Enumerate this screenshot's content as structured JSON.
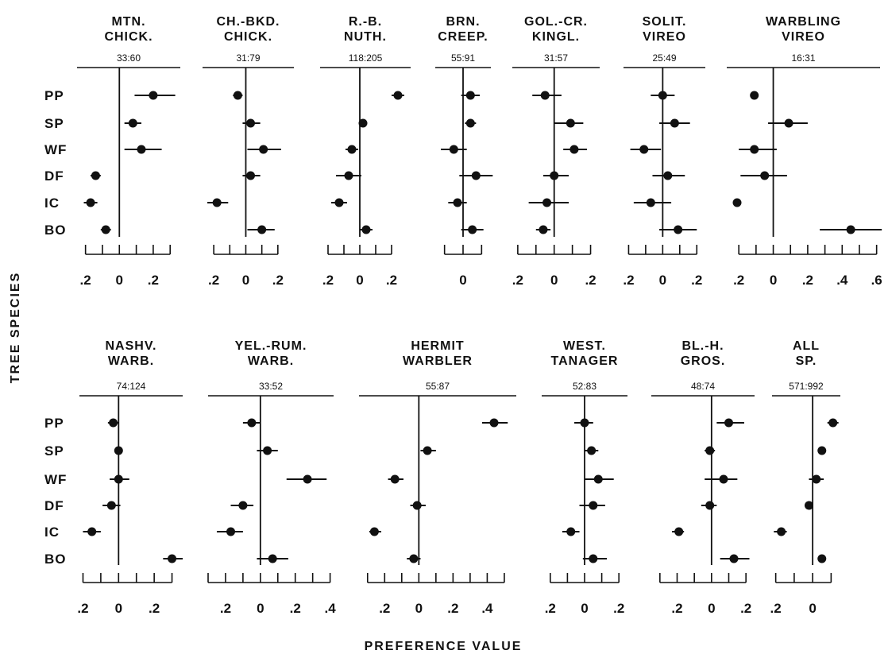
{
  "figure": {
    "y_axis_label": "TREE SPECIES",
    "x_axis_label": "PREFERENCE VALUE",
    "row_labels": [
      "PP",
      "SP",
      "WF",
      "DF",
      "IC",
      "BO"
    ]
  },
  "chart_data": [
    {
      "type": "scatter",
      "title": [
        "MTN.",
        "CHICK."
      ],
      "sample": "33:60",
      "categories": [
        "PP",
        "SP",
        "WF",
        "DF",
        "IC",
        "BO"
      ],
      "values": [
        0.2,
        0.08,
        0.13,
        -0.14,
        -0.17,
        -0.08
      ],
      "errors": [
        [
          0.09,
          0.33
        ],
        [
          0.03,
          0.13
        ],
        [
          0.03,
          0.25
        ],
        [
          -0.17,
          -0.11
        ],
        [
          -0.21,
          -0.13
        ],
        [
          -0.11,
          -0.05
        ]
      ],
      "xlim": [
        -0.25,
        0.36
      ],
      "ticks": [
        -0.2,
        -0.1,
        0,
        0.1,
        0.2,
        0.3
      ],
      "tick_labels": [
        ".2",
        "",
        "0",
        "",
        ".2",
        ""
      ]
    },
    {
      "type": "scatter",
      "title": [
        "CH.-BKD.",
        "CHICK."
      ],
      "sample": "31:79",
      "categories": [
        "PP",
        "SP",
        "WF",
        "DF",
        "IC",
        "BO"
      ],
      "values": [
        -0.05,
        0.03,
        0.11,
        0.03,
        -0.18,
        0.1
      ],
      "errors": [
        [
          -0.08,
          -0.02
        ],
        [
          -0.02,
          0.09
        ],
        [
          0.01,
          0.22
        ],
        [
          -0.02,
          0.09
        ],
        [
          -0.24,
          -0.11
        ],
        [
          0.01,
          0.18
        ]
      ],
      "xlim": [
        -0.27,
        0.3
      ],
      "ticks": [
        -0.2,
        -0.1,
        0,
        0.1,
        0.2
      ],
      "tick_labels": [
        ".2",
        "",
        "0",
        "",
        ".2"
      ]
    },
    {
      "type": "scatter",
      "title": [
        "R.-B.",
        "NUTH."
      ],
      "sample": "118:205",
      "categories": [
        "PP",
        "SP",
        "WF",
        "DF",
        "IC",
        "BO"
      ],
      "values": [
        0.24,
        0.02,
        -0.05,
        -0.07,
        -0.13,
        0.04
      ],
      "errors": [
        [
          0.2,
          0.28
        ],
        [
          0.0,
          0.04
        ],
        [
          -0.09,
          -0.01
        ],
        [
          -0.15,
          0.01
        ],
        [
          -0.18,
          -0.08
        ],
        [
          0.0,
          0.08
        ]
      ],
      "xlim": [
        -0.25,
        0.32
      ],
      "ticks": [
        -0.2,
        -0.1,
        0,
        0.1,
        0.2
      ],
      "tick_labels": [
        ".2",
        "",
        "0",
        "",
        ".2"
      ]
    },
    {
      "type": "scatter",
      "title": [
        "BRN.",
        "CREEP."
      ],
      "sample": "55:91",
      "categories": [
        "PP",
        "SP",
        "WF",
        "DF",
        "IC",
        "BO"
      ],
      "values": [
        0.04,
        0.04,
        -0.05,
        0.07,
        -0.03,
        0.05
      ],
      "errors": [
        [
          -0.01,
          0.09
        ],
        [
          0.01,
          0.07
        ],
        [
          -0.12,
          0.02
        ],
        [
          -0.02,
          0.16
        ],
        [
          -0.08,
          0.02
        ],
        [
          -0.01,
          0.11
        ]
      ],
      "xlim": [
        -0.15,
        0.15
      ],
      "ticks": [
        -0.1,
        0,
        0.1
      ],
      "tick_labels": [
        "",
        "0",
        ""
      ]
    },
    {
      "type": "scatter",
      "title": [
        "GOL.-CR.",
        "KINGL."
      ],
      "sample": "31:57",
      "categories": [
        "PP",
        "SP",
        "WF",
        "DF",
        "IC",
        "BO"
      ],
      "values": [
        -0.05,
        0.09,
        0.11,
        0.0,
        -0.04,
        -0.06
      ],
      "errors": [
        [
          -0.12,
          0.04
        ],
        [
          0.0,
          0.16
        ],
        [
          0.05,
          0.18
        ],
        [
          -0.06,
          0.08
        ],
        [
          -0.14,
          0.08
        ],
        [
          -0.1,
          -0.02
        ]
      ],
      "xlim": [
        -0.23,
        0.25
      ],
      "ticks": [
        -0.2,
        -0.1,
        0,
        0.1,
        0.2
      ],
      "tick_labels": [
        ".2",
        "",
        "0",
        "",
        ".2"
      ]
    },
    {
      "type": "scatter",
      "title": [
        "SOLIT.",
        "VIREO"
      ],
      "sample": "25:49",
      "categories": [
        "PP",
        "SP",
        "WF",
        "DF",
        "IC",
        "BO"
      ],
      "values": [
        0.0,
        0.07,
        -0.11,
        0.03,
        -0.07,
        0.09
      ],
      "errors": [
        [
          -0.07,
          0.07
        ],
        [
          -0.02,
          0.16
        ],
        [
          -0.19,
          -0.01
        ],
        [
          -0.06,
          0.13
        ],
        [
          -0.17,
          0.05
        ],
        [
          -0.02,
          0.2
        ]
      ],
      "xlim": [
        -0.23,
        0.25
      ],
      "ticks": [
        -0.2,
        -0.1,
        0,
        0.1,
        0.2
      ],
      "tick_labels": [
        ".2",
        "",
        "0",
        "",
        ".2"
      ]
    },
    {
      "type": "scatter",
      "title": [
        "WARBLING",
        "VIREO"
      ],
      "sample": "16:31",
      "categories": [
        "PP",
        "SP",
        "WF",
        "DF",
        "IC",
        "BO"
      ],
      "values": [
        -0.11,
        0.09,
        -0.11,
        -0.05,
        -0.21,
        0.45
      ],
      "errors": [
        [
          -0.12,
          -0.1
        ],
        [
          -0.03,
          0.2
        ],
        [
          -0.2,
          0.02
        ],
        [
          -0.19,
          0.08
        ],
        [
          -0.22,
          -0.2
        ],
        [
          0.27,
          0.63
        ]
      ],
      "xlim": [
        -0.27,
        0.62
      ],
      "ticks": [
        -0.2,
        -0.1,
        0,
        0.1,
        0.2,
        0.3,
        0.4,
        0.5,
        0.6
      ],
      "tick_labels": [
        ".2",
        "",
        "0",
        "",
        ".2",
        "",
        ".4",
        "",
        ".6"
      ]
    },
    {
      "type": "scatter",
      "title": [
        "NASHV.",
        "WARB."
      ],
      "sample": "74:124",
      "categories": [
        "PP",
        "SP",
        "WF",
        "DF",
        "IC",
        "BO"
      ],
      "values": [
        -0.03,
        0.0,
        0.0,
        -0.04,
        -0.15,
        0.3
      ],
      "errors": [
        [
          -0.06,
          0.0
        ],
        [
          -0.01,
          0.01
        ],
        [
          -0.05,
          0.06
        ],
        [
          -0.09,
          0.01
        ],
        [
          -0.2,
          -0.1
        ],
        [
          0.25,
          0.36
        ]
      ],
      "xlim": [
        -0.22,
        0.36
      ],
      "ticks": [
        -0.2,
        -0.1,
        0,
        0.1,
        0.2,
        0.3
      ],
      "tick_labels": [
        ".2",
        "",
        "0",
        "",
        ".2",
        ""
      ]
    },
    {
      "type": "scatter",
      "title": [
        "YEL.-RUM.",
        "WARB."
      ],
      "sample": "33:52",
      "categories": [
        "PP",
        "SP",
        "WF",
        "DF",
        "IC",
        "BO"
      ],
      "values": [
        -0.05,
        0.04,
        0.27,
        -0.1,
        -0.17,
        0.07
      ],
      "errors": [
        [
          -0.1,
          0.0
        ],
        [
          -0.02,
          0.1
        ],
        [
          0.15,
          0.38
        ],
        [
          -0.17,
          -0.04
        ],
        [
          -0.25,
          -0.1
        ],
        [
          -0.02,
          0.16
        ]
      ],
      "xlim": [
        -0.3,
        0.42
      ],
      "ticks": [
        -0.3,
        -0.2,
        -0.1,
        0,
        0.1,
        0.2,
        0.3,
        0.4
      ],
      "tick_labels": [
        "",
        ".2",
        "",
        "0",
        "",
        ".2",
        "",
        ".4"
      ]
    },
    {
      "type": "scatter",
      "title": [
        "HERMIT",
        "WARBLER"
      ],
      "sample": "55:87",
      "categories": [
        "PP",
        "SP",
        "WF",
        "DF",
        "IC",
        "BO"
      ],
      "values": [
        0.44,
        0.05,
        -0.14,
        -0.01,
        -0.26,
        -0.03
      ],
      "errors": [
        [
          0.37,
          0.52
        ],
        [
          0.01,
          0.1
        ],
        [
          -0.18,
          -0.09
        ],
        [
          -0.05,
          0.04
        ],
        [
          -0.29,
          -0.22
        ],
        [
          -0.07,
          0.01
        ]
      ],
      "xlim": [
        -0.35,
        0.57
      ],
      "ticks": [
        -0.3,
        -0.2,
        -0.1,
        0,
        0.1,
        0.2,
        0.3,
        0.4,
        0.5
      ],
      "tick_labels": [
        "",
        ".2",
        "",
        "0",
        "",
        ".2",
        "",
        ".4",
        ""
      ]
    },
    {
      "type": "scatter",
      "title": [
        "WEST.",
        "TANAGER"
      ],
      "sample": "52:83",
      "categories": [
        "PP",
        "SP",
        "WF",
        "DF",
        "IC",
        "BO"
      ],
      "values": [
        0.0,
        0.04,
        0.08,
        0.05,
        -0.08,
        0.05
      ],
      "errors": [
        [
          -0.06,
          0.05
        ],
        [
          0.0,
          0.08
        ],
        [
          0.0,
          0.17
        ],
        [
          -0.03,
          0.12
        ],
        [
          -0.13,
          -0.03
        ],
        [
          -0.01,
          0.13
        ]
      ],
      "xlim": [
        -0.25,
        0.25
      ],
      "ticks": [
        -0.2,
        -0.1,
        0,
        0.1,
        0.2
      ],
      "tick_labels": [
        ".2",
        "",
        "0",
        "",
        ".2"
      ]
    },
    {
      "type": "scatter",
      "title": [
        "BL.-H.",
        "GROS."
      ],
      "sample": "48:74",
      "categories": [
        "PP",
        "SP",
        "WF",
        "DF",
        "IC",
        "BO"
      ],
      "values": [
        0.1,
        -0.01,
        0.07,
        -0.01,
        -0.19,
        0.13
      ],
      "errors": [
        [
          0.03,
          0.19
        ],
        [
          -0.04,
          0.02
        ],
        [
          -0.04,
          0.15
        ],
        [
          -0.06,
          0.03
        ],
        [
          -0.23,
          -0.16
        ],
        [
          0.05,
          0.22
        ]
      ],
      "xlim": [
        -0.35,
        0.25
      ],
      "ticks": [
        -0.3,
        -0.2,
        -0.1,
        0,
        0.1,
        0.2
      ],
      "tick_labels": [
        "",
        ".2",
        "",
        "0",
        "",
        ".2"
      ]
    },
    {
      "type": "scatter",
      "title": [
        "ALL",
        "SP."
      ],
      "sample": "571:992",
      "categories": [
        "PP",
        "SP",
        "WF",
        "DF",
        "IC",
        "BO"
      ],
      "values": [
        0.11,
        0.05,
        0.02,
        -0.02,
        -0.17,
        0.05
      ],
      "errors": [
        [
          0.08,
          0.14
        ],
        [
          0.03,
          0.07
        ],
        [
          -0.02,
          0.06
        ],
        [
          -0.04,
          0.0
        ],
        [
          -0.21,
          -0.14
        ],
        [
          0.03,
          0.07
        ]
      ],
      "xlim": [
        -0.22,
        0.15
      ],
      "ticks": [
        -0.2,
        -0.1,
        0,
        0.1
      ],
      "tick_labels": [
        ".2",
        "",
        "0",
        ""
      ]
    }
  ]
}
